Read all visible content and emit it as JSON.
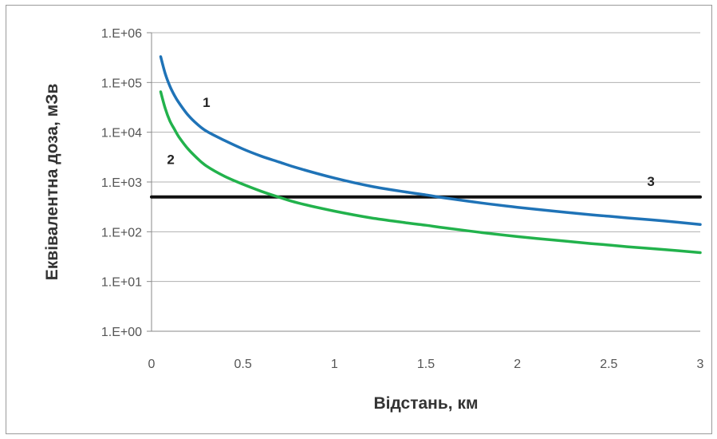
{
  "chart_data": {
    "type": "line",
    "title": "",
    "xlabel": "Відстань, км",
    "ylabel": "Еквівалентна доза, мЗв",
    "xlim": [
      0,
      3
    ],
    "ylim": [
      1,
      1000000
    ],
    "yscale": "log",
    "grid": {
      "y": true,
      "x": false
    },
    "legend": "none (series labelled inline)",
    "x_ticks": [
      "0",
      "0.5",
      "1",
      "1.5",
      "2",
      "2.5",
      "3"
    ],
    "y_ticks": [
      "1.E+00",
      "1.E+01",
      "1.E+02",
      "1.E+03",
      "1.E+04",
      "1.E+05",
      "1.E+06"
    ],
    "series": [
      {
        "label": "1",
        "color": "#1f73b7",
        "x": [
          0.05,
          0.075,
          0.1,
          0.125,
          0.15,
          0.2,
          0.25,
          0.3,
          0.4,
          0.5,
          0.6,
          0.7,
          0.8,
          1.0,
          1.2,
          1.4,
          1.5,
          1.6,
          1.8,
          2.0,
          2.2,
          2.4,
          2.5,
          2.6,
          2.8,
          3.0
        ],
        "values": [
          330000,
          150000,
          85000,
          55000,
          39000,
          22000,
          14500,
          10500,
          6800,
          4600,
          3300,
          2500,
          1900,
          1200,
          820,
          620,
          550,
          480,
          380,
          310,
          260,
          220,
          205,
          190,
          165,
          140
        ]
      },
      {
        "label": "2",
        "color": "#22b24c",
        "x": [
          0.05,
          0.075,
          0.1,
          0.125,
          0.15,
          0.2,
          0.25,
          0.3,
          0.4,
          0.5,
          0.6,
          0.7,
          0.8,
          1.0,
          1.2,
          1.4,
          1.5,
          1.6,
          1.8,
          2.0,
          2.2,
          2.4,
          2.5,
          2.6,
          2.8,
          3.0
        ],
        "values": [
          65000,
          30000,
          17000,
          11500,
          8000,
          4600,
          3000,
          2100,
          1300,
          900,
          650,
          490,
          380,
          260,
          190,
          150,
          135,
          120,
          97,
          80,
          68,
          58,
          54,
          50,
          44,
          38
        ]
      },
      {
        "label": "3",
        "color": "#111111",
        "x": [
          0,
          3
        ],
        "values": [
          500,
          500
        ]
      }
    ]
  }
}
